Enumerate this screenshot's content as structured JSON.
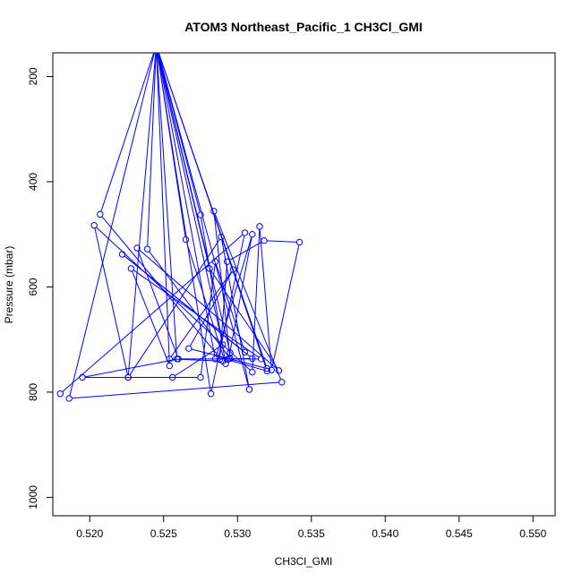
{
  "chart_data": {
    "type": "line",
    "title": "ATOM3 Northeast_Pacific_1 CH3Cl_GMI",
    "xlabel": "CH3Cl_GMI",
    "ylabel": "Pressure (mbar)",
    "xlim": [
      0.5175,
      0.5515
    ],
    "ylim": [
      1035,
      155
    ],
    "y_reversed": true,
    "x_ticks": [
      0.52,
      0.525,
      0.53,
      0.535,
      0.54,
      0.545,
      0.55
    ],
    "x_tick_labels": [
      "0.520",
      "0.525",
      "0.530",
      "0.535",
      "0.540",
      "0.545",
      "0.550"
    ],
    "y_ticks": [
      200,
      400,
      600,
      800,
      1000
    ],
    "y_tick_labels": [
      "200",
      "400",
      "600",
      "800",
      "1000"
    ],
    "grid": false,
    "legend": "none",
    "series_color": "#0000ff",
    "series": [
      {
        "marker": "open-circle",
        "points": [
          [
            0.518,
            803
          ],
          [
            0.5305,
            497
          ],
          [
            0.5282,
            803
          ],
          [
            0.5245,
            141
          ],
          [
            0.5281,
            565
          ],
          [
            0.5328,
            759
          ],
          [
            0.5232,
            526
          ],
          [
            0.526,
            737
          ],
          [
            0.5195,
            772
          ],
          [
            0.5275,
            772
          ],
          [
            0.5285,
            552
          ],
          [
            0.5305,
            724
          ],
          [
            0.5222,
            538
          ],
          [
            0.531,
            736
          ],
          [
            0.5294,
            737
          ],
          [
            0.531,
            500
          ],
          [
            0.5285,
            737
          ],
          [
            0.5245,
            139
          ],
          [
            0.5275,
            463
          ],
          [
            0.5292,
            746
          ],
          [
            0.5265,
            510
          ],
          [
            0.5245,
            141
          ],
          [
            0.5186,
            812
          ],
          [
            0.533,
            781
          ],
          [
            0.5284,
            456
          ],
          [
            0.5295,
            736
          ],
          [
            0.5295,
            725
          ],
          [
            0.5245,
            140
          ],
          [
            0.5259,
            737
          ],
          [
            0.5316,
            737
          ],
          [
            0.5228,
            565
          ],
          [
            0.5254,
            750
          ],
          [
            0.5245,
            142
          ],
          [
            0.529,
            710
          ],
          [
            0.5256,
            772
          ],
          [
            0.5226,
            772
          ],
          [
            0.5289,
            505
          ],
          [
            0.5308,
            795
          ],
          [
            0.5245,
            140
          ],
          [
            0.5239,
            528
          ],
          [
            0.5295,
            736
          ],
          [
            0.5293,
            738
          ],
          [
            0.532,
            760
          ],
          [
            0.5245,
            141
          ],
          [
            0.5207,
            462
          ],
          [
            0.529,
            741
          ],
          [
            0.5254,
            737
          ],
          [
            0.5297,
            567
          ],
          [
            0.5267,
            717
          ],
          [
            0.532,
            755
          ],
          [
            0.5245,
            142
          ],
          [
            0.5226,
            772
          ],
          [
            0.5203,
            483
          ],
          [
            0.531,
            762
          ],
          [
            0.5315,
            485
          ],
          [
            0.5323,
            758
          ],
          [
            0.5342,
            515
          ],
          [
            0.5318,
            512
          ],
          [
            0.5293,
            552
          ],
          [
            0.5288,
            738
          ]
        ]
      }
    ]
  }
}
